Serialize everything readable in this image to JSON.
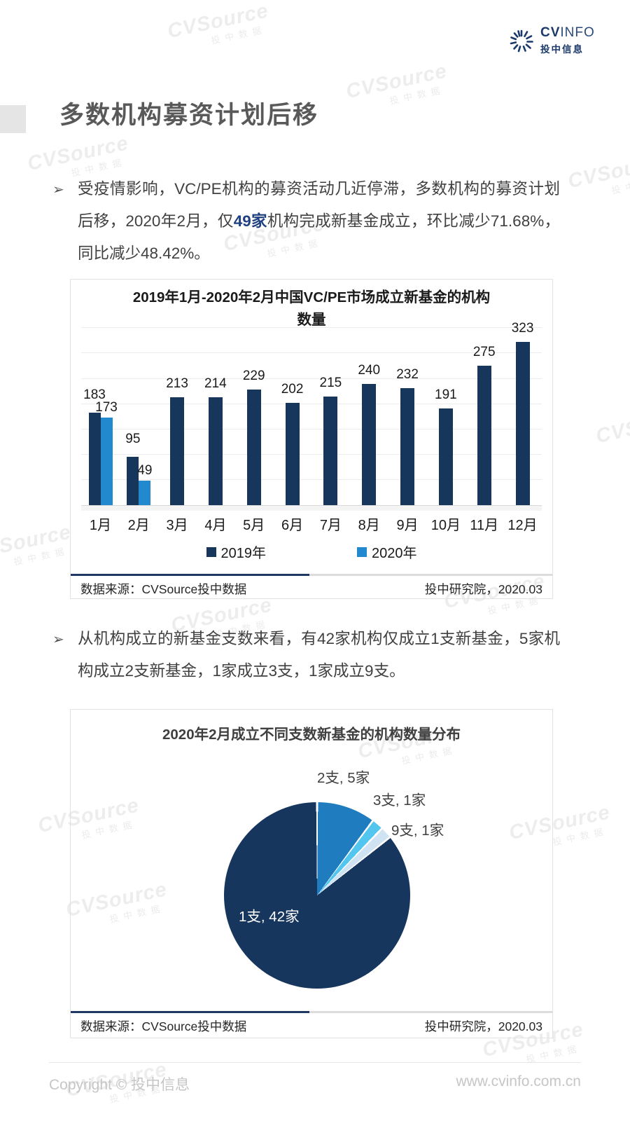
{
  "page": {
    "watermark": {
      "main": "CVSource",
      "sub": "投中数据"
    },
    "logo": {
      "cv": "CV",
      "info": "INFO",
      "cn": "投中信息"
    },
    "title": "多数机构募资计划后移",
    "bullets": {
      "marker": "➢",
      "b1_prefix": "受疫情影响，VC/PE机构的募资活动几近停滞，多数机构的募资计划后移，2020年2月，仅",
      "b1_highlight": "49家",
      "b1_suffix": "机构完成新基金成立，环比减少71.68%，同比减少48.42%。",
      "b2": "从机构成立的新基金支数来看，有42家机构仅成立1支新基金，5家机构成立2支新基金，1家成立3支，1家成立9支。"
    },
    "footer": {
      "copyright": "Copyright © 投中信息",
      "url": "www.cvinfo.com.cn"
    }
  },
  "chart_data": [
    {
      "type": "bar",
      "title_line1": "2019年1月-2020年2月中国VC/PE市场成立新基金的机构",
      "title_line2": "数量",
      "categories": [
        "1月",
        "2月",
        "3月",
        "4月",
        "5月",
        "6月",
        "7月",
        "8月",
        "9月",
        "10月",
        "11月",
        "12月"
      ],
      "series": [
        {
          "name": "2019年",
          "color": "#16365C",
          "values": [
            183,
            95,
            213,
            214,
            229,
            202,
            215,
            240,
            232,
            191,
            275,
            323
          ]
        },
        {
          "name": "2020年",
          "color": "#2389CE",
          "values": [
            173,
            49,
            null,
            null,
            null,
            null,
            null,
            null,
            null,
            null,
            null,
            null
          ]
        }
      ],
      "ylabel": "",
      "xlabel": "",
      "ylim": [
        0,
        350
      ],
      "gridline_step": 50,
      "grid": true,
      "legend_position": "bottom",
      "source_left": "数据来源：CVSource投中数据",
      "source_right": "投中研究院，2020.03"
    },
    {
      "type": "pie",
      "title": "2020年2月成立不同支数新基金的机构数量分布",
      "total": 49,
      "start_angle_deg": 0,
      "direction": "clockwise-from-top",
      "slices": [
        {
          "label": "2支, 5家",
          "value": 5,
          "color": "#1F7DBF"
        },
        {
          "label": "3支, 1家",
          "value": 1,
          "color": "#52C6EE"
        },
        {
          "label": "9支, 1家",
          "value": 1,
          "color": "#CFE3F2"
        },
        {
          "label": "1支, 42家",
          "value": 42,
          "color": "#16365E"
        }
      ],
      "source_left": "数据来源：CVSource投中数据",
      "source_right": "投中研究院，2020.03"
    }
  ]
}
